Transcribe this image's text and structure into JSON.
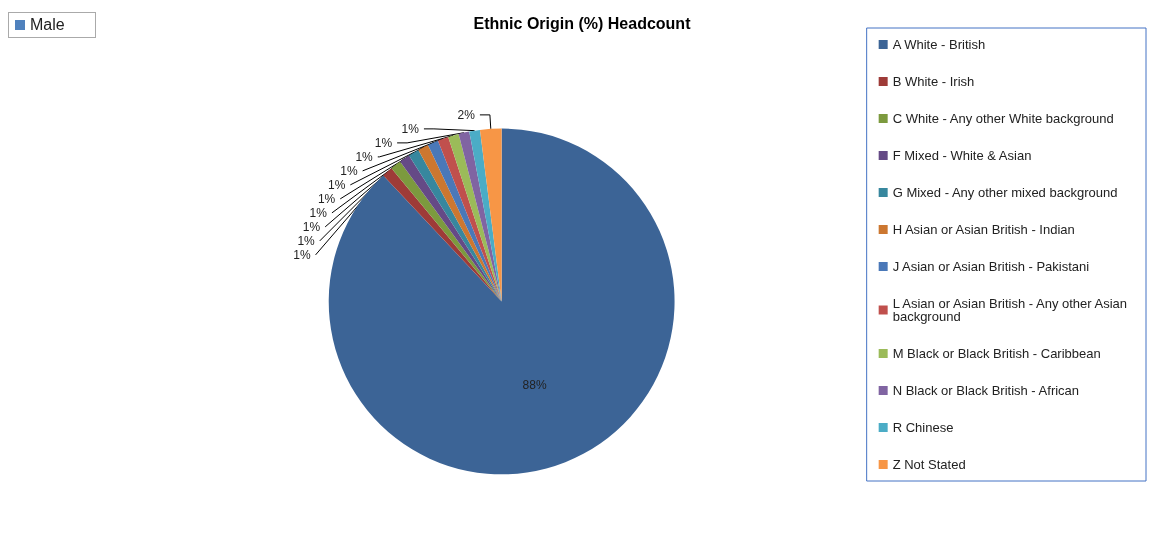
{
  "chart_data": {
    "type": "pie",
    "title": "Ethnic Origin (%) Headcount",
    "categories": [
      "A White - British",
      "B White - Irish",
      "C White - Any other White background",
      "F Mixed - White & Asian",
      "G Mixed - Any other mixed background",
      "H Asian or Asian British - Indian",
      "J Asian or Asian British - Pakistani",
      "L Asian or Asian British - Any other Asian background",
      "M Black or Black British - Caribbean",
      "N Black or Black British - African",
      "R Chinese",
      "Z Not Stated"
    ],
    "values": [
      88,
      1,
      1,
      1,
      1,
      1,
      1,
      1,
      1,
      1,
      1,
      2
    ],
    "colors": [
      "#3c6496",
      "#9e3b38",
      "#7c9a3e",
      "#654a86",
      "#37879e",
      "#cc7730",
      "#4a78b8",
      "#c0504d",
      "#9bbb59",
      "#8064a2",
      "#4bacc6",
      "#f79646"
    ],
    "value_labels": [
      "88%",
      "1%",
      "1%",
      "1%",
      "1%",
      "1%",
      "1%",
      "1%",
      "1%",
      "1%",
      "1%",
      "2%"
    ],
    "legend": "right",
    "annotations": [
      "Male"
    ]
  }
}
